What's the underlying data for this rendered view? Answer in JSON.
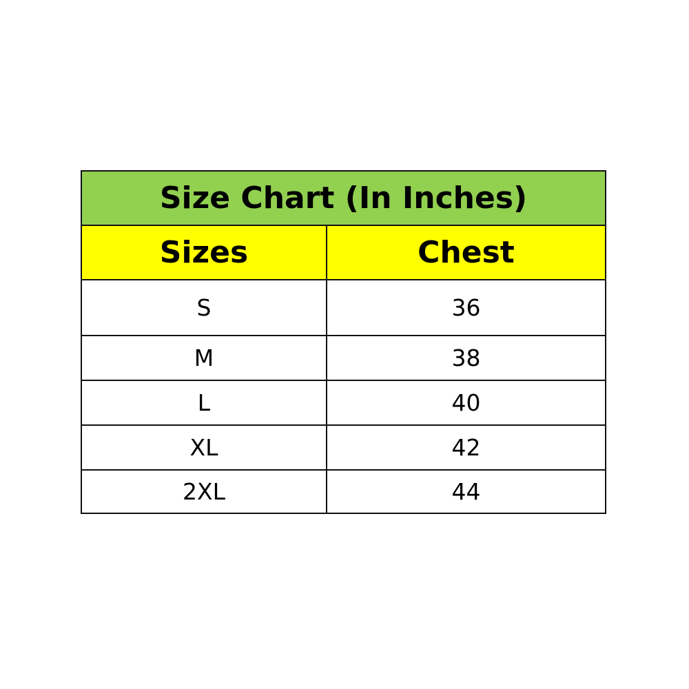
{
  "title": "Size Chart (In Inches)",
  "headers": [
    "Sizes",
    "Chest"
  ],
  "rows": [
    [
      "S",
      "36"
    ],
    [
      "M",
      "38"
    ],
    [
      "L",
      "40"
    ],
    [
      "XL",
      "42"
    ],
    [
      "2XL",
      "44"
    ]
  ],
  "colors": {
    "title_bg": "#92d050",
    "header_bg": "#ffff00"
  }
}
